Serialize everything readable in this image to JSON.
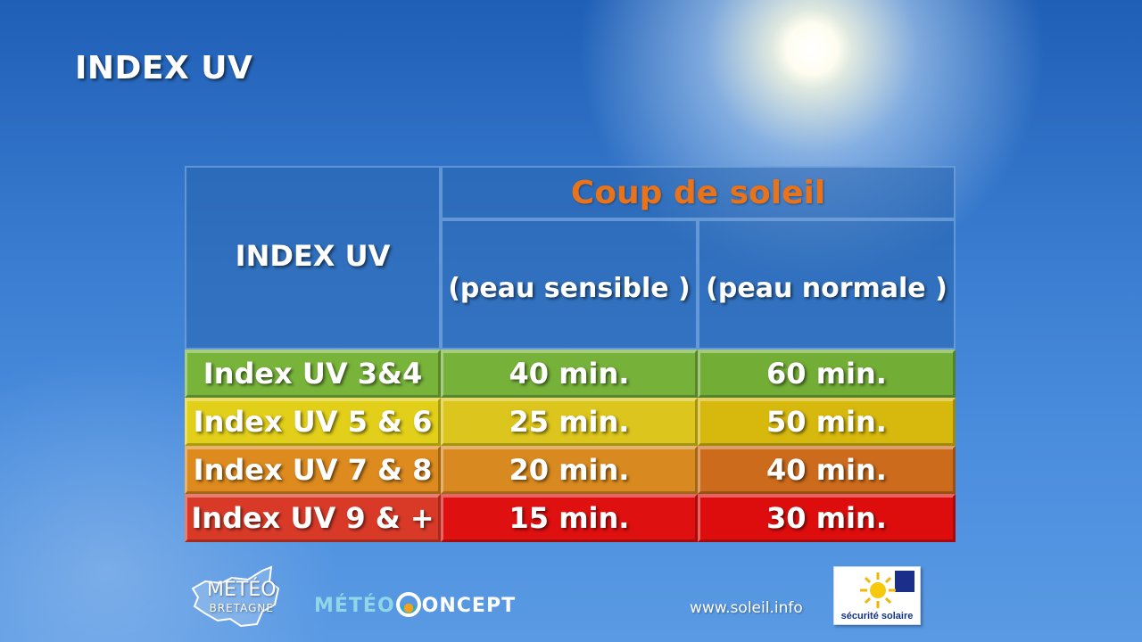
{
  "slide": {
    "title": "INDEX UV"
  },
  "table": {
    "header": {
      "index": "INDEX UV",
      "group": "Coup de soleil",
      "col_sensitive": "(peau sensible )",
      "col_normal": "(peau normale )"
    },
    "rows": [
      {
        "label": "Index UV 3&4",
        "sensitive": "40 min.",
        "normal": "60 min.",
        "colors": [
          "#78b43a",
          "#76b13a",
          "#72ad36"
        ]
      },
      {
        "label": "Index UV 5 & 6",
        "sensitive": "25 min.",
        "normal": "50 min.",
        "colors": [
          "#e2cf19",
          "#dcc51d",
          "#d7b80c"
        ]
      },
      {
        "label": "Index UV 7 & 8",
        "sensitive": "20 min.",
        "normal": "40 min.",
        "colors": [
          "#dd8a1e",
          "#d88a20",
          "#cd6b1c"
        ]
      },
      {
        "label": "Index UV 9 & +",
        "sensitive": "15 min.",
        "normal": "30 min.",
        "colors": [
          "#d93a28",
          "#de1010",
          "#de0d0d"
        ]
      }
    ]
  },
  "footer": {
    "meteo_bretagne": {
      "line1": "MÉTÉO",
      "line2": "BRETAGNE"
    },
    "meteo_concept": {
      "left": "MÉTÉO",
      "right": "ONCEPT"
    },
    "website": "www.soleil.info",
    "securite_solaire": "sécurité solaire"
  }
}
